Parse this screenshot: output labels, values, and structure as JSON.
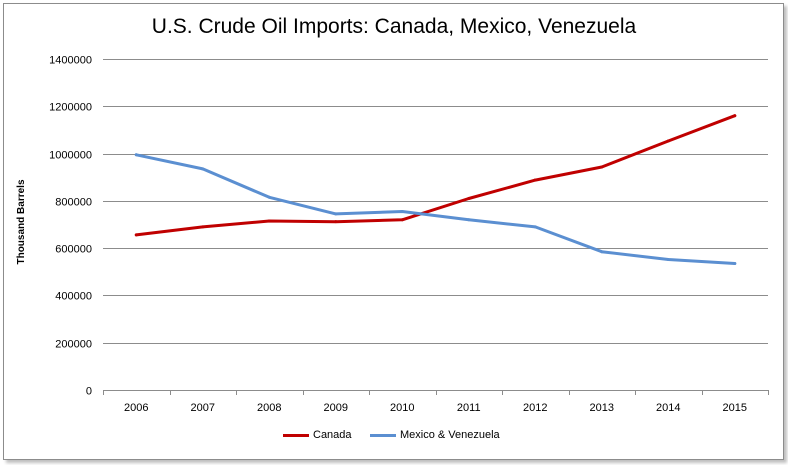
{
  "chart_data": {
    "type": "line",
    "title": "U.S. Crude Oil Imports: Canada, Mexico, Venezuela",
    "xlabel": "",
    "ylabel": "Thousand Barrels",
    "ylim": [
      0,
      1400000
    ],
    "yticks": [
      0,
      200000,
      400000,
      600000,
      800000,
      1000000,
      1200000,
      1400000
    ],
    "ytick_labels": [
      "0",
      "200000",
      "400000",
      "600000",
      "800000",
      "1000000",
      "1200000",
      "1400000"
    ],
    "categories": [
      "2006",
      "2007",
      "2008",
      "2009",
      "2010",
      "2011",
      "2012",
      "2013",
      "2014",
      "2015"
    ],
    "grid": true,
    "legend_position": "bottom",
    "series": [
      {
        "name": "Canada",
        "color": "#c00000",
        "values": [
          656000,
          690000,
          715000,
          712000,
          720000,
          810000,
          888000,
          943000,
          1053000,
          1160000
        ]
      },
      {
        "name": "Mexico & Venezuela",
        "color": "#5b8fd1",
        "values": [
          995000,
          935000,
          815000,
          745000,
          755000,
          720000,
          690000,
          585000,
          552000,
          535000
        ]
      }
    ]
  }
}
